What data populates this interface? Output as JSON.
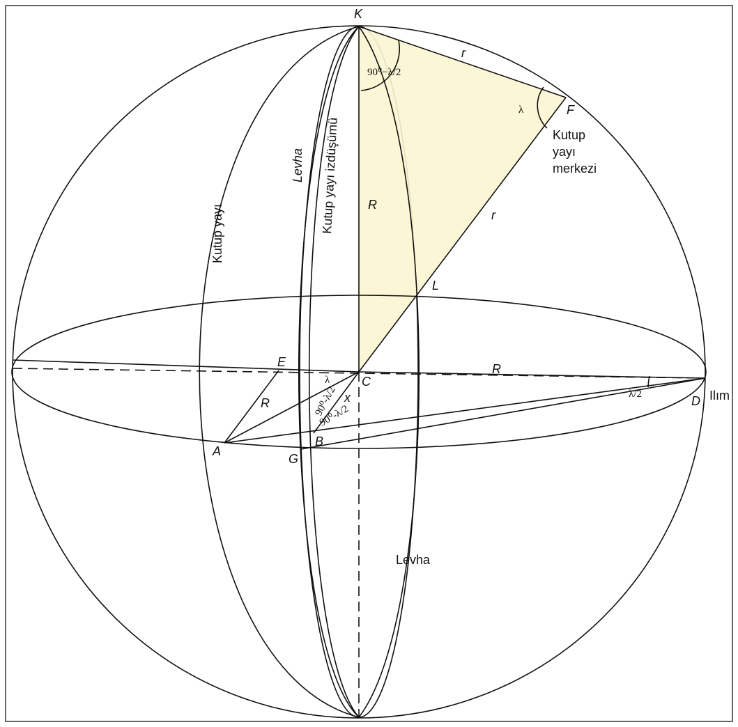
{
  "points": {
    "K": "K",
    "F": "F",
    "L": "L",
    "E": "E",
    "C": "C",
    "D": "D",
    "A": "A",
    "G": "G",
    "B": "B"
  },
  "labels": {
    "r_top": "r",
    "angle_K": "90⁰−λ/2",
    "lambda_F": "λ",
    "pole_center": [
      "Kutup",
      "yayı",
      "merkezi"
    ],
    "levha_top": "Levha",
    "projection": "Kutup yayı izdüşümü",
    "pole_arc": "Kutup yayı",
    "R_vertical": "R",
    "r_diag": "r",
    "R_horizontal": "R",
    "lambda_C": "λ",
    "R_A": "R",
    "x": "x",
    "angle_small_1": "90⁰-λ/2",
    "angle_small_2": "90⁰-λ/2",
    "half_lambda": "λ/2",
    "ilim": "Ilım",
    "levha_bottom": "Levha"
  }
}
